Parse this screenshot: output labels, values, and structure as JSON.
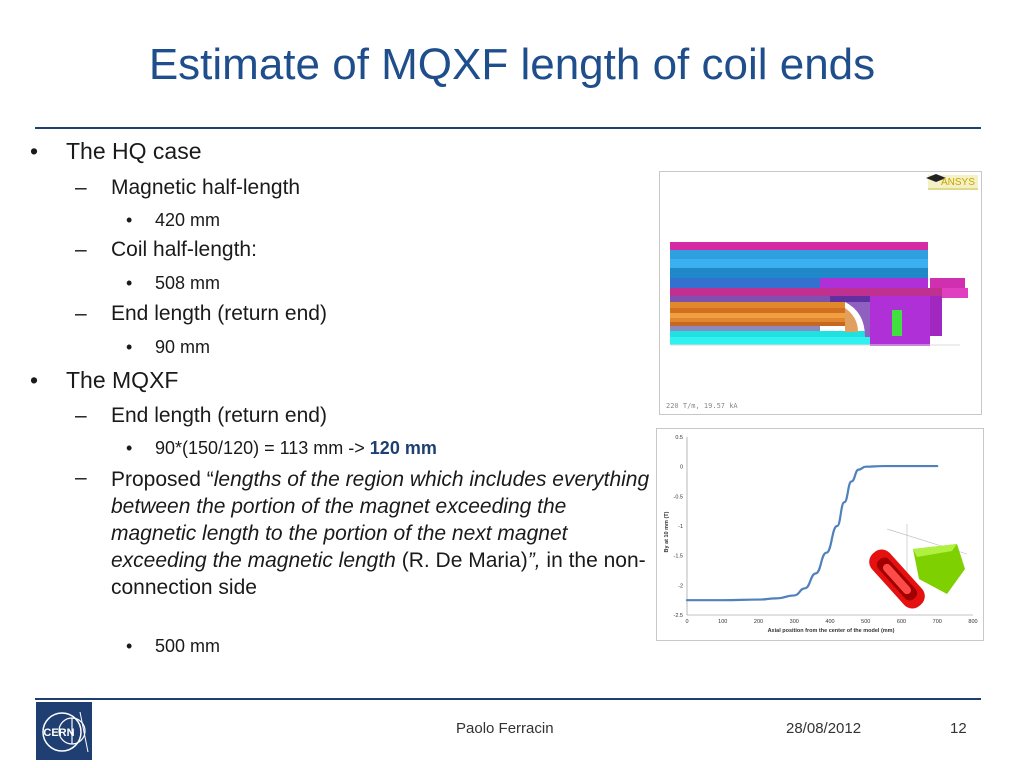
{
  "slide": {
    "title": "Estimate of MQXF length of coil ends",
    "bullets": {
      "hq_case": "The HQ case",
      "mag_half_length": "Magnetic half-length",
      "mag_half_length_value": "420 mm",
      "coil_half_length": "Coil half-length:",
      "coil_half_length_value": "508 mm",
      "end_length": "End length (return end)",
      "end_length_value": "90 mm",
      "mqxf": "The MQXF",
      "mqxf_end_length": "End length (return end)",
      "mqxf_calc_prefix": "90*(150/120) = 113 mm -> ",
      "mqxf_calc_result": "120 mm",
      "proposed_prefix": "Proposed “",
      "proposed_quote": "lengths of the region which includes everything between the portion of the magnet exceeding the magnetic length to the portion of the next magnet exceeding the magnetic length",
      "proposed_author": " (R. De Maria)",
      "proposed_close": "”,",
      "proposed_suffix": " in the non-connection side",
      "proposed_value": "500 mm"
    }
  },
  "figure_top": {
    "logo_text": "ANSYS",
    "caption": "220 T/m, 19.57 kA"
  },
  "chart_data": {
    "type": "line",
    "title": "",
    "xlabel": "Axial position from the center of the model (mm)",
    "ylabel": "By at 10 mm (T)",
    "xlim": [
      0,
      800
    ],
    "ylim": [
      -2.5,
      0.5
    ],
    "xticks": [
      "0",
      "100",
      "200",
      "300",
      "400",
      "500",
      "600",
      "700",
      "800"
    ],
    "yticks": [
      "0.5",
      "0",
      "-0.5",
      "-1",
      "-1.5",
      "-2",
      "-2.5"
    ],
    "grid": false,
    "series": [
      {
        "color": "#4f81bd",
        "x": [
          0,
          100,
          200,
          250,
          300,
          330,
          360,
          390,
          420,
          440,
          460,
          480,
          500,
          550,
          600,
          650,
          700
        ],
        "y": [
          -2.25,
          -2.25,
          -2.24,
          -2.22,
          -2.17,
          -2.05,
          -1.8,
          -1.45,
          -1.0,
          -0.6,
          -0.25,
          -0.05,
          0.0,
          0.01,
          0.01,
          0.01,
          0.01
        ]
      }
    ]
  },
  "footer": {
    "author": "Paolo Ferracin",
    "date": "28/08/2012",
    "page": "12",
    "logo_text": "CERN"
  },
  "colors": {
    "title": "#1f4e8c",
    "rule": "#1f3f73",
    "curve": "#4f81bd"
  }
}
